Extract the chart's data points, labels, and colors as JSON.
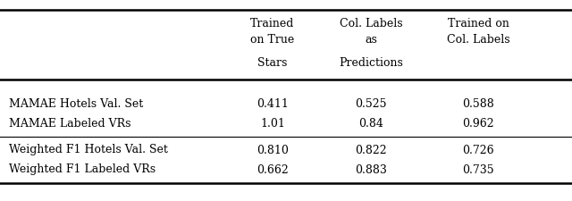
{
  "col_headers": [
    [
      "Trained",
      "on True",
      "Stars"
    ],
    [
      "Col. Labels",
      "as",
      "Predictions"
    ],
    [
      "Trained on",
      "Col. Labels",
      ""
    ]
  ],
  "row_labels": [
    "MAMAE Hotels Val. Set",
    "MAMAE Labeled VRs",
    "Weighted F1 Hotels Val. Set",
    "Weighted F1 Labeled VRs"
  ],
  "values": [
    [
      "0.411",
      "0.525",
      "0.588"
    ],
    [
      "1.01",
      "0.84",
      "0.962"
    ],
    [
      "0.810",
      "0.822",
      "0.726"
    ],
    [
      "0.662",
      "0.883",
      "0.735"
    ]
  ],
  "background_color": "#ffffff",
  "font_size": 9.0,
  "header_font_size": 9.0
}
